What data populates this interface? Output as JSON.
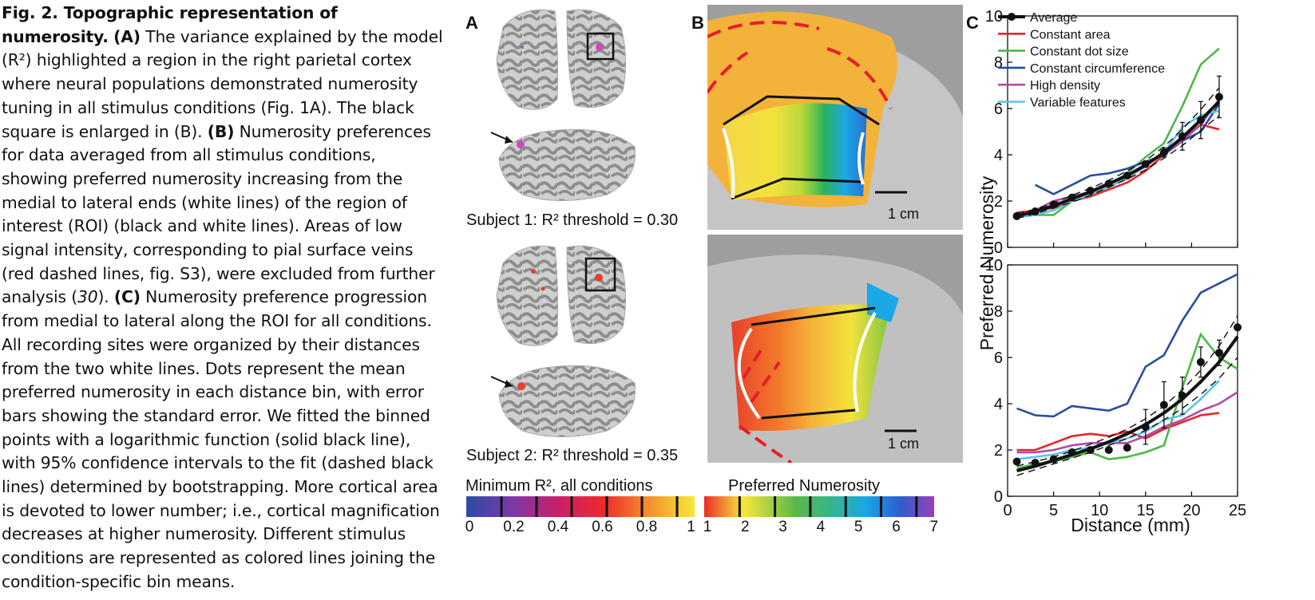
{
  "caption": {
    "title": "Fig. 2. Topographic representation of numerosity.",
    "A_label": "(A)",
    "A_text": " The variance explained by the model (R²) highlighted a region in the right parietal cortex where neural populations demonstrated numerosity tuning in all stimulus conditions (Fig. 1A). The black square is enlarged in (B). ",
    "B_label": "(B)",
    "B_text": " Numerosity preferences for data averaged from all stimulus conditions, showing preferred numerosity increasing from the medial to lateral ends (white lines) of the region of interest (ROI) (black and white lines). Areas of low signal intensity, corresponding to pial surface veins (red dashed lines, fig. S3), were excluded from further analysis (",
    "ref": "30",
    "B_text2": "). ",
    "C_label": "(C)",
    "C_text": " Numerosity preference progression from medial to lateral along the ROI for all conditions. All recording sites were organized by their distances from the two white lines. Dots represent the mean preferred numerosity in each distance bin, with error bars showing the standard error. We fitted the binned points with a logarithmic function (solid black line), with 95% confidence intervals to the fit (dashed black lines) determined by bootstrapping. More cortical area is devoted to lower number; i.e., cortical magnification decreases at higher numerosity. Different stimulus conditions are represented as colored lines joining the condition-specific bin means."
  },
  "panels": {
    "a": "A",
    "b": "B",
    "c": "C"
  },
  "subjects": [
    {
      "label": "Subject 1: R² threshold = 0.30"
    },
    {
      "label": "Subject 2: R² threshold = 0.35"
    }
  ],
  "scale_bar": "1 cm",
  "colorbars": {
    "r2": {
      "title": "Minimum R², all conditions",
      "ticks": [
        "0",
        "0.2",
        "0.4",
        "0.6",
        "0.8",
        "1"
      ]
    },
    "num": {
      "title": "Preferred Numerosity",
      "ticks": [
        "1",
        "2",
        "3",
        "4",
        "5",
        "6",
        "7"
      ]
    }
  },
  "chart_data": [
    {
      "type": "line",
      "panel": "C top",
      "ylabel": "Preferred Numerosity",
      "xlim": [
        0,
        25
      ],
      "ylim": [
        0,
        10
      ],
      "xticks": [
        0,
        5,
        10,
        15,
        20,
        25
      ],
      "yticks": [
        0,
        2,
        4,
        6,
        8,
        10
      ],
      "legend": [
        "Average",
        "Constant area",
        "Constant dot size",
        "Constant circumference",
        "High density",
        "Variable features"
      ],
      "series": [
        {
          "name": "Average",
          "color": "#111111",
          "x": [
            1,
            3,
            5,
            7,
            9,
            11,
            13,
            15,
            17,
            19,
            21,
            23
          ],
          "y": [
            1.35,
            1.55,
            1.85,
            2.15,
            2.45,
            2.75,
            3.1,
            3.6,
            4.1,
            4.8,
            5.5,
            6.5
          ],
          "err": [
            0.05,
            0.05,
            0.05,
            0.05,
            0.05,
            0.05,
            0.05,
            0.1,
            0.2,
            0.6,
            0.8,
            0.9
          ]
        },
        {
          "name": "Constant area",
          "color": "#e8232b",
          "x": [
            1,
            3,
            5,
            7,
            9,
            11,
            13,
            15,
            17,
            19,
            21,
            23
          ],
          "y": [
            1.5,
            1.6,
            1.7,
            2.0,
            2.2,
            2.5,
            2.8,
            3.3,
            4.0,
            4.7,
            5.3,
            5.1
          ]
        },
        {
          "name": "Constant dot size",
          "color": "#4db848",
          "x": [
            1,
            3,
            5,
            7,
            9,
            11,
            13,
            15,
            17,
            19,
            21,
            23
          ],
          "y": [
            1.3,
            1.4,
            1.4,
            2.0,
            2.3,
            2.7,
            3.2,
            3.9,
            4.5,
            6.1,
            7.9,
            8.6
          ]
        },
        {
          "name": "Constant circumference",
          "color": "#2a4da0",
          "x": [
            3,
            5,
            7,
            9,
            11,
            13,
            15,
            17,
            19,
            21,
            23
          ],
          "y": [
            2.7,
            2.3,
            2.7,
            3.1,
            3.2,
            3.4,
            3.7,
            4.0,
            4.6,
            5.0,
            6.2
          ]
        },
        {
          "name": "High density",
          "color": "#b24aa9",
          "x": [
            1,
            3,
            5,
            7,
            9,
            11,
            13,
            15,
            17,
            19,
            21,
            23
          ],
          "y": [
            1.3,
            1.6,
            2.0,
            2.2,
            2.4,
            2.8,
            3.1,
            3.6,
            4.1,
            4.6,
            5.3,
            6.4
          ]
        },
        {
          "name": "Variable features",
          "color": "#5bc4e6",
          "x": [
            1,
            3,
            5,
            7,
            9,
            11,
            13,
            15,
            17,
            19,
            21,
            23
          ],
          "y": [
            1.3,
            1.4,
            1.6,
            2.0,
            2.3,
            2.6,
            3.0,
            3.5,
            4.1,
            5.2,
            5.7,
            5.9
          ]
        }
      ],
      "fit": {
        "x": [
          1,
          3,
          5,
          7,
          9,
          11,
          13,
          15,
          17,
          19,
          21,
          23
        ],
        "y": [
          1.35,
          1.55,
          1.8,
          2.1,
          2.4,
          2.75,
          3.1,
          3.55,
          4.1,
          4.75,
          5.5,
          6.3
        ],
        "lower": [
          1.25,
          1.45,
          1.7,
          1.95,
          2.25,
          2.6,
          2.95,
          3.35,
          3.85,
          4.4,
          5.05,
          5.7
        ],
        "upper": [
          1.45,
          1.65,
          1.9,
          2.25,
          2.55,
          2.9,
          3.3,
          3.75,
          4.35,
          5.1,
          5.95,
          6.9
        ]
      }
    },
    {
      "type": "line",
      "panel": "C bottom",
      "xlabel": "Distance (mm)",
      "xlim": [
        0,
        25
      ],
      "ylim": [
        0,
        10
      ],
      "xticks": [
        0,
        5,
        10,
        15,
        20,
        25
      ],
      "yticks": [
        0,
        2,
        4,
        6,
        8,
        10
      ],
      "series": [
        {
          "name": "Average",
          "color": "#111111",
          "x": [
            1,
            3,
            5,
            7,
            9,
            11,
            13,
            15,
            17,
            19,
            21,
            23,
            25
          ],
          "y": [
            1.5,
            1.45,
            1.6,
            1.9,
            2.0,
            2.0,
            2.1,
            3.0,
            3.95,
            4.35,
            5.8,
            6.2,
            7.3
          ],
          "err": [
            0.05,
            0.05,
            0.05,
            0.05,
            0.05,
            0.1,
            0.1,
            0.75,
            1.0,
            0.8,
            0.65,
            0.55,
            0.05
          ]
        },
        {
          "name": "Constant area",
          "color": "#e8232b",
          "x": [
            1,
            3,
            5,
            7,
            9,
            11,
            13,
            15,
            17,
            19,
            21,
            23
          ],
          "y": [
            2.0,
            2.0,
            2.3,
            2.6,
            2.7,
            2.6,
            2.8,
            2.5,
            2.9,
            3.2,
            3.5,
            3.6
          ]
        },
        {
          "name": "Constant dot size",
          "color": "#4db848",
          "x": [
            1,
            3,
            5,
            7,
            9,
            11,
            13,
            15,
            17,
            19,
            21,
            23,
            25
          ],
          "y": [
            1.2,
            1.4,
            1.5,
            1.7,
            1.9,
            1.6,
            1.7,
            1.9,
            2.2,
            4.7,
            7.0,
            6.0,
            5.5
          ]
        },
        {
          "name": "Constant circumference",
          "color": "#2a4da0",
          "x": [
            1,
            3,
            5,
            7,
            9,
            11,
            13,
            15,
            17,
            19,
            21,
            23,
            25
          ],
          "y": [
            3.8,
            3.5,
            3.45,
            3.9,
            3.8,
            3.7,
            4.0,
            5.6,
            6.1,
            7.6,
            8.8,
            9.2,
            9.6
          ]
        },
        {
          "name": "High density",
          "color": "#b24aa9",
          "x": [
            1,
            3,
            5,
            7,
            9,
            11,
            13,
            15,
            17,
            19,
            21,
            23,
            25
          ],
          "y": [
            1.9,
            1.9,
            2.0,
            2.2,
            2.3,
            2.3,
            2.3,
            2.6,
            3.0,
            3.3,
            3.7,
            4.0,
            4.5
          ]
        },
        {
          "name": "Variable features",
          "color": "#5bc4e6",
          "x": [
            1,
            3,
            5,
            7,
            9,
            11,
            13,
            15,
            17,
            19,
            21,
            23
          ],
          "y": [
            1.6,
            1.7,
            1.8,
            2.0,
            2.1,
            2.3,
            2.5,
            2.8,
            3.3,
            3.5,
            4.2,
            5.0
          ]
        }
      ],
      "fit": {
        "x": [
          1,
          3,
          5,
          7,
          9,
          11,
          13,
          15,
          17,
          19,
          21,
          23,
          25
        ],
        "y": [
          1.1,
          1.3,
          1.55,
          1.8,
          2.05,
          2.35,
          2.7,
          3.1,
          3.6,
          4.2,
          4.95,
          5.8,
          6.9
        ],
        "lower": [
          0.9,
          1.15,
          1.4,
          1.65,
          1.9,
          2.2,
          2.5,
          2.85,
          3.3,
          3.8,
          4.4,
          5.1,
          6.0
        ],
        "upper": [
          1.3,
          1.5,
          1.7,
          1.95,
          2.25,
          2.55,
          2.9,
          3.35,
          3.9,
          4.6,
          5.45,
          6.5,
          7.8
        ]
      }
    }
  ]
}
